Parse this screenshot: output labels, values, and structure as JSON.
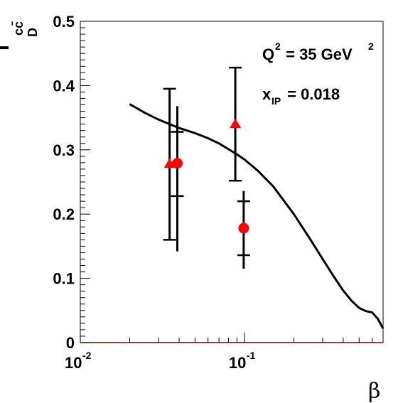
{
  "chart_data": {
    "type": "scatter",
    "title": "",
    "ylabel": {
      "main": "f",
      "sup": "cc̄",
      "sub": "D"
    },
    "xlabel": "β",
    "x_scale": "log",
    "xlim": [
      0.01,
      0.7
    ],
    "ylim": [
      0,
      0.5
    ],
    "x_ticks": [
      {
        "value": 0.01,
        "base": "10",
        "exp": "-2"
      },
      {
        "value": 0.1,
        "base": "10",
        "exp": "-1"
      }
    ],
    "y_ticks": [
      {
        "value": 0,
        "label": "0"
      },
      {
        "value": 0.1,
        "label": "0.1"
      },
      {
        "value": 0.2,
        "label": "0.2"
      },
      {
        "value": 0.3,
        "label": "0.3"
      },
      {
        "value": 0.4,
        "label": "0.4"
      },
      {
        "value": 0.5,
        "label": "0.5"
      }
    ],
    "annotations": {
      "q2": {
        "base": "Q",
        "sup1": "2",
        "mid": " = 35 GeV",
        "sup2": "2"
      },
      "xip": {
        "base": "x",
        "sub": "IP",
        "rest": " = 0.018"
      }
    },
    "series": [
      {
        "marker": "triangle",
        "color": "#ff0000",
        "points": [
          {
            "x": 0.035,
            "y": 0.278,
            "ylo": 0.16,
            "yhi": 0.395,
            "ticks": [
              0.16,
              0.395
            ]
          },
          {
            "x": 0.088,
            "y": 0.34,
            "ylo": 0.252,
            "yhi": 0.428,
            "ticks": [
              0.252,
              0.428
            ]
          }
        ]
      },
      {
        "marker": "circle",
        "color": "#ff0000",
        "points": [
          {
            "x": 0.039,
            "y": 0.279,
            "ylo": 0.142,
            "yhi": 0.368,
            "ticks": [
              0.228,
              0.328
            ]
          },
          {
            "x": 0.099,
            "y": 0.178,
            "ylo": 0.115,
            "yhi": 0.236,
            "ticks": [
              0.136,
              0.22
            ]
          }
        ]
      }
    ],
    "curve": {
      "color": "#000000",
      "x": [
        0.02,
        0.025,
        0.03,
        0.035,
        0.04,
        0.05,
        0.06,
        0.07,
        0.08,
        0.09,
        0.1,
        0.12,
        0.15,
        0.2,
        0.25,
        0.3,
        0.35,
        0.4,
        0.45,
        0.5,
        0.55,
        0.6,
        0.65,
        0.7
      ],
      "y": [
        0.371,
        0.357,
        0.347,
        0.34,
        0.334,
        0.326,
        0.318,
        0.31,
        0.301,
        0.293,
        0.285,
        0.268,
        0.243,
        0.2,
        0.162,
        0.13,
        0.103,
        0.081,
        0.065,
        0.054,
        0.049,
        0.047,
        0.037,
        0.022
      ]
    }
  }
}
